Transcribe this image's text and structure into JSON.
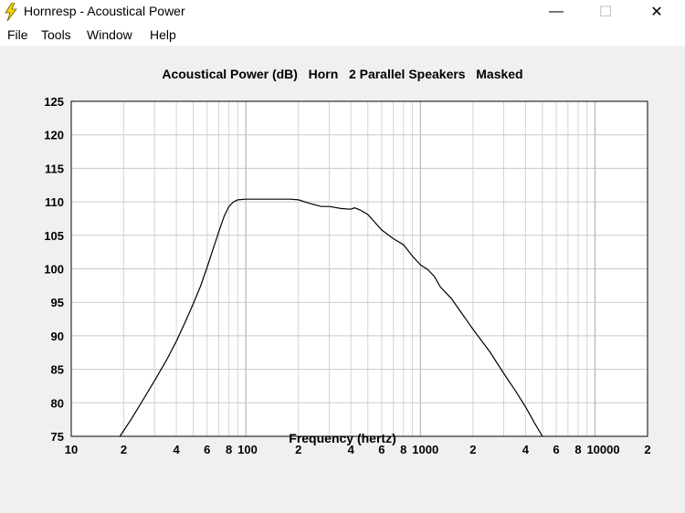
{
  "window": {
    "title": "Hornresp - Acoustical Power",
    "minimize": "—",
    "maximize": "☐",
    "close": "✕"
  },
  "menu": [
    "File",
    "Tools",
    "Window",
    "Help"
  ],
  "chart_data": {
    "type": "line",
    "title": "Acoustical Power (dB)   Horn   2 Parallel Speakers   Masked",
    "xlabel": "Frequency (hertz)",
    "ylabel": "",
    "xscale": "log",
    "xlim": [
      10,
      20000
    ],
    "ylim": [
      75,
      125
    ],
    "yticks": [
      125,
      120,
      115,
      110,
      105,
      100,
      95,
      90,
      85,
      80,
      75
    ],
    "xtick_labels": [
      {
        "x": 10,
        "label": "10"
      },
      {
        "x": 20,
        "label": "2"
      },
      {
        "x": 40,
        "label": "4"
      },
      {
        "x": 60,
        "label": "6"
      },
      {
        "x": 80,
        "label": "8"
      },
      {
        "x": 100,
        "label": "100"
      },
      {
        "x": 200,
        "label": "2"
      },
      {
        "x": 400,
        "label": "4"
      },
      {
        "x": 600,
        "label": "6"
      },
      {
        "x": 800,
        "label": "8"
      },
      {
        "x": 1000,
        "label": "1000"
      },
      {
        "x": 2000,
        "label": "2"
      },
      {
        "x": 4000,
        "label": "4"
      },
      {
        "x": 6000,
        "label": "6"
      },
      {
        "x": 8000,
        "label": "8"
      },
      {
        "x": 10000,
        "label": "10000"
      },
      {
        "x": 20000,
        "label": "2"
      }
    ],
    "grid": true,
    "series": [
      {
        "x": [
          19,
          22,
          26,
          30,
          35,
          40,
          45,
          50,
          55,
          60,
          65,
          70,
          75,
          80,
          85,
          90,
          100,
          120,
          150,
          180,
          200,
          230,
          270,
          300,
          350,
          400,
          420,
          450,
          500,
          550,
          600,
          700,
          800,
          900,
          1000,
          1100,
          1200,
          1300,
          1500,
          1700,
          2000,
          2500,
          3000,
          3500,
          4000,
          4500,
          5000
        ],
        "y": [
          75,
          77.5,
          80.6,
          83.3,
          86.3,
          89.2,
          92.1,
          94.8,
          97.4,
          100.2,
          103.0,
          105.5,
          107.8,
          109.3,
          110.0,
          110.3,
          110.4,
          110.4,
          110.4,
          110.4,
          110.3,
          109.8,
          109.3,
          109.3,
          109.0,
          108.9,
          109.1,
          108.8,
          108.1,
          106.9,
          105.8,
          104.5,
          103.6,
          101.9,
          100.6,
          99.9,
          98.9,
          97.3,
          95.6,
          93.6,
          91.0,
          87.6,
          84.4,
          81.8,
          79.4,
          77.0,
          75.0
        ]
      }
    ]
  }
}
